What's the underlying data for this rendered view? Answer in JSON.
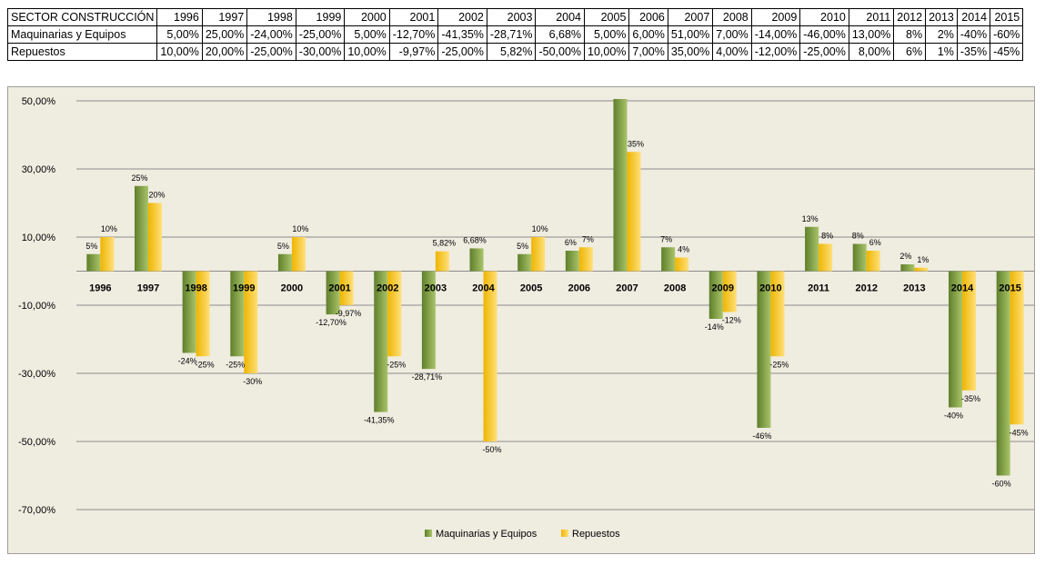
{
  "table": {
    "header_label": "SECTOR CONSTRUCCIÓN",
    "years": [
      "1996",
      "1997",
      "1998",
      "1999",
      "2000",
      "2001",
      "2002",
      "2003",
      "2004",
      "2005",
      "2006",
      "2007",
      "2008",
      "2009",
      "2010",
      "2011",
      "2012",
      "2013",
      "2014",
      "2015"
    ],
    "rows": [
      {
        "label": "Maquinarias y Equipos",
        "cells": [
          "5,00%",
          "25,00%",
          "-24,00%",
          "-25,00%",
          "5,00%",
          "-12,70%",
          "-41,35%",
          "-28,71%",
          "6,68%",
          "5,00%",
          "6,00%",
          "51,00%",
          "7,00%",
          "-14,00%",
          "-46,00%",
          "13,00%",
          "8%",
          "2%",
          "-40%",
          "-60%"
        ]
      },
      {
        "label": "Repuestos",
        "cells": [
          "10,00%",
          "20,00%",
          "-25,00%",
          "-30,00%",
          "10,00%",
          "-9,97%",
          "-25,00%",
          "5,82%",
          "-50,00%",
          "10,00%",
          "7,00%",
          "35,00%",
          "4,00%",
          "-12,00%",
          "-25,00%",
          "8,00%",
          "6%",
          "1%",
          "-35%",
          "-45%"
        ]
      }
    ]
  },
  "chart_data": {
    "type": "bar",
    "categories": [
      "1996",
      "1997",
      "1998",
      "1999",
      "2000",
      "2001",
      "2002",
      "2003",
      "2004",
      "2005",
      "2006",
      "2007",
      "2008",
      "2009",
      "2010",
      "2011",
      "2012",
      "2013",
      "2014",
      "2015"
    ],
    "series": [
      {
        "name": "Maquinarias y Equipos",
        "color": "#7f9d3a",
        "values": [
          5,
          25,
          -24,
          -25,
          5,
          -12.7,
          -41.35,
          -28.71,
          6.68,
          5,
          6,
          51,
          7,
          -14,
          -46,
          13,
          8,
          2,
          -40,
          -60
        ],
        "labels": [
          "5%",
          "25%",
          "-24%",
          "-25%",
          "5%",
          "-12,70%",
          "-41,35%",
          "-28,71%",
          "6,68%",
          "5%",
          "6%",
          "",
          "7%",
          "-14%",
          "-46%",
          "13%",
          "8%",
          "2%",
          "-40%",
          "-60%"
        ]
      },
      {
        "name": "Repuestos",
        "color": "#f5c518",
        "values": [
          10,
          20,
          -25,
          -30,
          10,
          -9.97,
          -25,
          5.82,
          -50,
          10,
          7,
          35,
          4,
          -12,
          -25,
          8,
          6,
          1,
          -35,
          -45
        ],
        "labels": [
          "10%",
          "20%",
          "-25%",
          "-30%",
          "10%",
          "-9,97%",
          "-25%",
          "5,82%",
          "-50%",
          "10%",
          "7%",
          "35%",
          "4%",
          "-12%",
          "-25%",
          "8%",
          "6%",
          "1%",
          "-35%",
          "-45%"
        ]
      }
    ],
    "yticks": [
      50,
      30,
      10,
      -10,
      -30,
      -50,
      -70
    ],
    "ytick_labels": [
      "50,00%",
      "30,00%",
      "10,00%",
      "-10,00%",
      "-30,00%",
      "-50,00%",
      "-70,00%"
    ],
    "ylim": [
      -70,
      50
    ],
    "grid": true,
    "legend_position": "bottom"
  }
}
